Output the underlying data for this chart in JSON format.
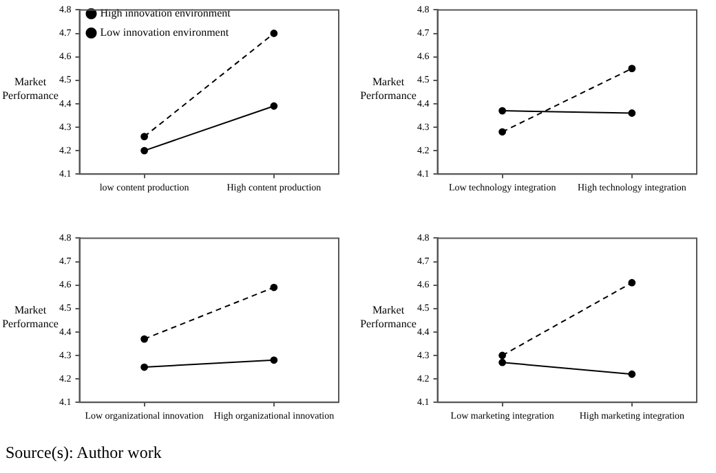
{
  "chart_data": [
    {
      "type": "line",
      "ylabel": "Market Performance",
      "categories": [
        "low content production",
        "High content production"
      ],
      "ylim": [
        4.1,
        4.8
      ],
      "yticks": [
        4.1,
        4.2,
        4.3,
        4.4,
        4.5,
        4.6,
        4.7,
        4.8
      ],
      "grid": false,
      "legend": "top left",
      "marker": "circle",
      "series": [
        {
          "name": "High innovation environment",
          "color": "#000000",
          "line_style": "dashed",
          "values": [
            4.26,
            4.7
          ]
        },
        {
          "name": "Low innovation environment",
          "color": "#000000",
          "line_style": "solid",
          "values": [
            4.2,
            4.39
          ]
        }
      ]
    },
    {
      "type": "line",
      "ylabel": "Market Performance",
      "categories": [
        "Low technology integration",
        "High technology integration"
      ],
      "ylim": [
        4.1,
        4.8
      ],
      "yticks": [
        4.1,
        4.2,
        4.3,
        4.4,
        4.5,
        4.6,
        4.7,
        4.8
      ],
      "grid": false,
      "marker": "circle",
      "series": [
        {
          "color": "#000000",
          "line_style": "dashed",
          "values": [
            4.28,
            4.55
          ]
        },
        {
          "color": "#000000",
          "line_style": "solid",
          "values": [
            4.37,
            4.36
          ]
        }
      ]
    },
    {
      "type": "line",
      "ylabel": "Market Performance",
      "categories": [
        "Low organizational innovation",
        "High organizational innovation"
      ],
      "ylim": [
        4.1,
        4.8
      ],
      "yticks": [
        4.1,
        4.2,
        4.3,
        4.4,
        4.5,
        4.6,
        4.7,
        4.8
      ],
      "grid": false,
      "marker": "circle",
      "annotations": [
        "Source(s): Author work"
      ],
      "series": [
        {
          "color": "#000000",
          "line_style": "dashed",
          "values": [
            4.37,
            4.59
          ]
        },
        {
          "color": "#000000",
          "line_style": "solid",
          "values": [
            4.25,
            4.28
          ]
        }
      ]
    },
    {
      "type": "line",
      "ylabel": "Market Performance",
      "categories": [
        "Low marketing integration",
        "High marketing integration"
      ],
      "ylim": [
        4.1,
        4.8
      ],
      "yticks": [
        4.1,
        4.2,
        4.3,
        4.4,
        4.5,
        4.6,
        4.7,
        4.8
      ],
      "grid": false,
      "marker": "circle",
      "series": [
        {
          "color": "#000000",
          "line_style": "dashed",
          "values": [
            4.3,
            4.61
          ]
        },
        {
          "color": "#000000",
          "line_style": "solid",
          "values": [
            4.27,
            4.22
          ]
        }
      ]
    }
  ]
}
